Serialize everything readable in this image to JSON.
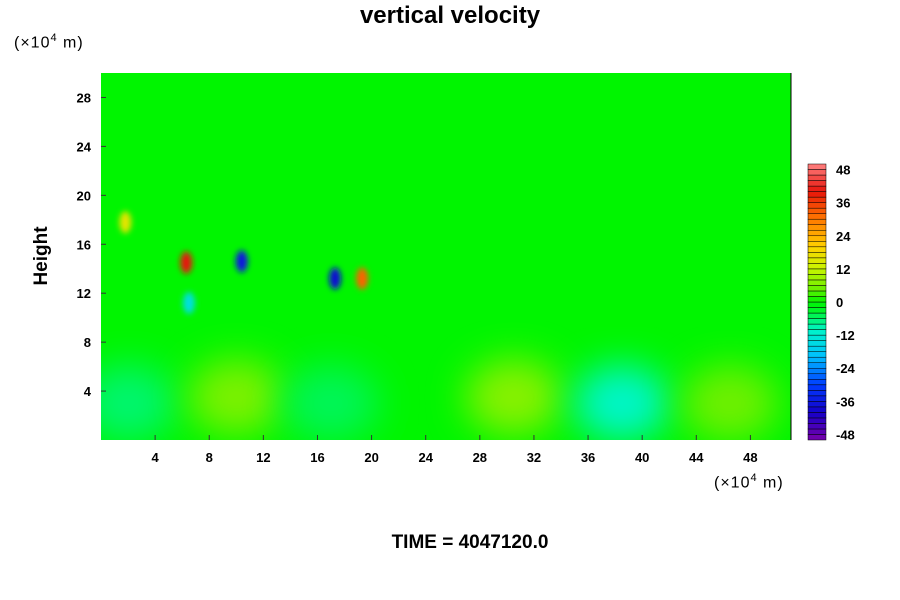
{
  "chart_data": {
    "type": "heatmap",
    "title": "vertical velocity",
    "ylabel": "Height",
    "x_unit": {
      "prefix": "(×10",
      "exp": "4",
      "suffix": " m)"
    },
    "y_unit": {
      "prefix": "(×10",
      "exp": "4",
      "suffix": " m)"
    },
    "xlim": [
      0,
      51
    ],
    "ylim": [
      0,
      30
    ],
    "x_ticks": [
      "4",
      "8",
      "12",
      "16",
      "20",
      "24",
      "28",
      "32",
      "36",
      "40",
      "44",
      "48"
    ],
    "y_ticks": [
      "4",
      "8",
      "12",
      "16",
      "20",
      "24",
      "28"
    ],
    "colorbar": {
      "range": [
        -50,
        50
      ],
      "labels": [
        "48",
        "36",
        "24",
        "12",
        "0",
        "-12",
        "-24",
        "-36",
        "-48"
      ]
    },
    "features": [
      {
        "x": 2,
        "y": 3,
        "value": -6
      },
      {
        "x": 10,
        "y": 3.5,
        "value": 6
      },
      {
        "x": 17,
        "y": 3,
        "value": -5
      },
      {
        "x": 30.5,
        "y": 3.5,
        "value": 7
      },
      {
        "x": 38.5,
        "y": 3,
        "value": -10
      },
      {
        "x": 46.5,
        "y": 3,
        "value": 5
      },
      {
        "x": 6.3,
        "y": 14.5,
        "value": 40
      },
      {
        "x": 10.4,
        "y": 14.6,
        "value": -36
      },
      {
        "x": 17.3,
        "y": 13.2,
        "value": -38
      },
      {
        "x": 19.3,
        "y": 13.2,
        "value": 32
      },
      {
        "x": 1.8,
        "y": 17.8,
        "value": 16
      },
      {
        "x": 6.5,
        "y": 11.2,
        "value": -14
      }
    ]
  },
  "footer": {
    "time": "TIME = 4047120.0"
  }
}
